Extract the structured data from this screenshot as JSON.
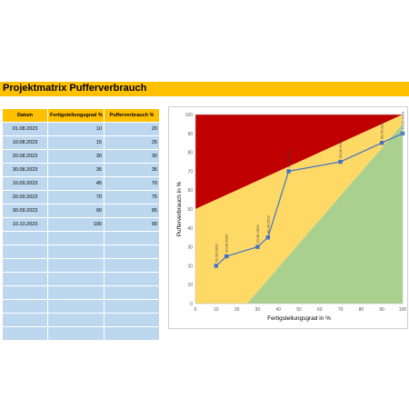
{
  "page_title": "Projektmatrix Pufferverbrauch",
  "table": {
    "headers": [
      "Datum",
      "Fertigstellungsgrad %",
      "Pufferverbrauch %"
    ],
    "rows": [
      [
        "01.08.2023",
        "10",
        "20"
      ],
      [
        "10.08.2023",
        "15",
        "25"
      ],
      [
        "20.08.2023",
        "30",
        "30"
      ],
      [
        "30.08.2023",
        "35",
        "35"
      ],
      [
        "10.09.2023",
        "45",
        "70"
      ],
      [
        "20.09.2023",
        "70",
        "75"
      ],
      [
        "30.09.2023",
        "90",
        "85"
      ],
      [
        "10.10.2023",
        "100",
        "90"
      ]
    ],
    "empty_rows": 8
  },
  "chart_data": {
    "type": "scatter",
    "xlabel": "Fertigstellungsgrad in %",
    "ylabel": "Pufferverbrauch in %",
    "xlim": [
      0,
      100
    ],
    "ylim": [
      0,
      100
    ],
    "xticks": [
      0,
      10,
      20,
      30,
      40,
      50,
      60,
      70,
      80,
      90,
      100
    ],
    "yticks": [
      0,
      10,
      20,
      30,
      40,
      50,
      60,
      70,
      80,
      90,
      100
    ],
    "grid": false,
    "zones": [
      {
        "color": "#c00000",
        "polygon": [
          [
            0,
            50
          ],
          [
            0,
            100
          ],
          [
            100,
            100
          ]
        ]
      },
      {
        "color": "#ffd966",
        "polygon": [
          [
            0,
            0
          ],
          [
            0,
            50
          ],
          [
            100,
            100
          ],
          [
            100,
            95
          ],
          [
            25,
            0
          ]
        ]
      },
      {
        "color": "#a9d08e",
        "polygon": [
          [
            25,
            0
          ],
          [
            100,
            95
          ],
          [
            100,
            0
          ]
        ]
      }
    ],
    "series": [
      {
        "color": "#4472c4",
        "x": [
          10,
          15,
          30,
          35,
          45,
          70,
          90,
          100
        ],
        "y": [
          20,
          25,
          30,
          35,
          70,
          75,
          85,
          90
        ],
        "labels": [
          "01.08.2023",
          "10.08.2023",
          "20.08.2023",
          "30.08.2023",
          "10.09.2023",
          "20.09.2023",
          "30.09.2023",
          "10.10.2023"
        ]
      }
    ]
  }
}
